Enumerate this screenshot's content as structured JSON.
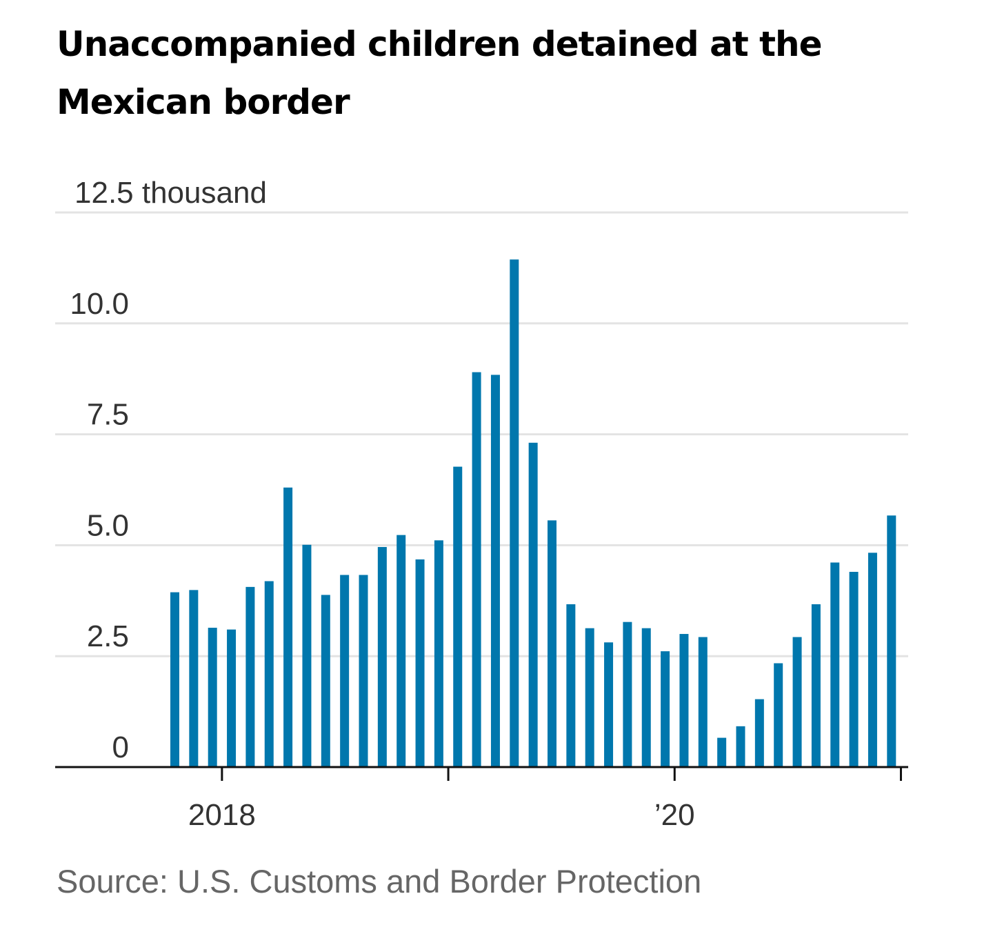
{
  "chart_data": {
    "type": "bar",
    "title": "Unaccompanied children detained at the Mexican border",
    "source": "Source: U.S. Customs and Border Protection",
    "y_unit": "thousand",
    "ylim": [
      0,
      12.5
    ],
    "y_ticks": [
      {
        "value": 0,
        "label": "0"
      },
      {
        "value": 2.5,
        "label": "2.5"
      },
      {
        "value": 5.0,
        "label": "5.0"
      },
      {
        "value": 7.5,
        "label": "7.5"
      },
      {
        "value": 10.0,
        "label": "10.0"
      },
      {
        "value": 12.5,
        "label": "12.5 thousand"
      }
    ],
    "x_ticks": [
      {
        "label": "2018",
        "after_bar_index": 2
      },
      {
        "label": "",
        "after_bar_index": 14
      },
      {
        "label": "’20",
        "after_bar_index": 26
      },
      {
        "label": "",
        "after_bar_index": 38
      }
    ],
    "color": "#0077AD",
    "grid": true,
    "values": [
      3.94,
      3.99,
      3.14,
      3.1,
      4.06,
      4.19,
      6.3,
      5.01,
      3.88,
      4.33,
      4.33,
      4.96,
      5.23,
      4.68,
      5.11,
      6.77,
      8.9,
      8.84,
      11.44,
      7.31,
      5.56,
      3.67,
      3.13,
      2.81,
      3.27,
      3.13,
      2.61,
      3.0,
      2.93,
      0.66,
      0.92,
      1.53,
      2.34,
      2.93,
      3.67,
      4.61,
      4.4,
      4.83,
      5.67
    ]
  }
}
